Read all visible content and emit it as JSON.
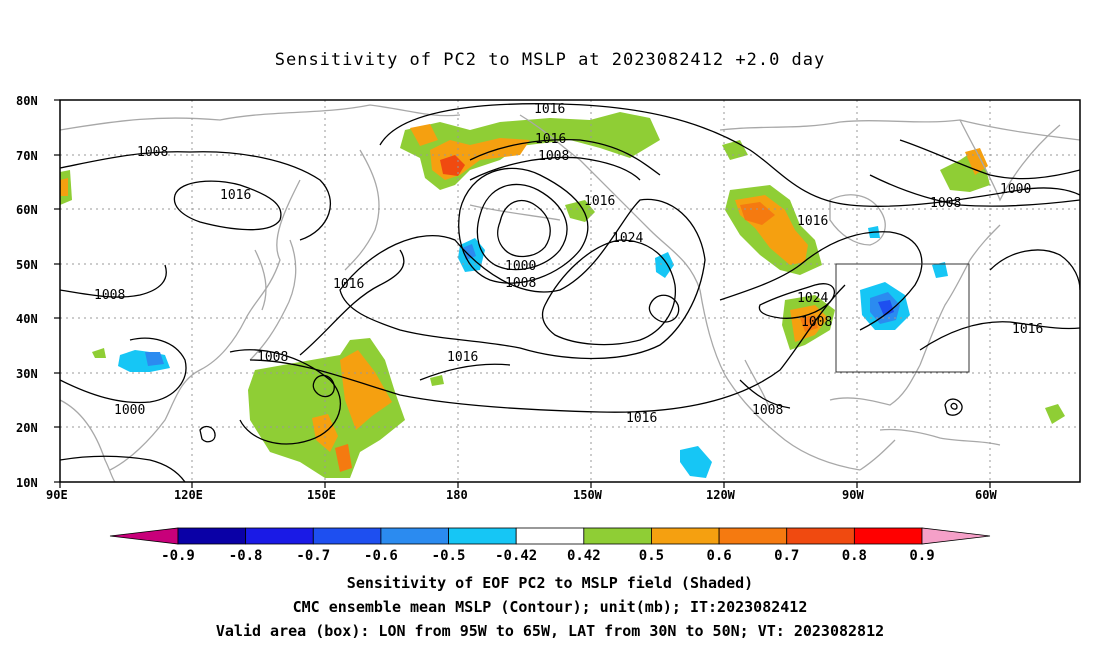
{
  "title": "Sensitivity of PC2 to MSLP at 2023082412 +2.0 day",
  "axes": {
    "lon_ticks": [
      "90E",
      "120E",
      "150E",
      "180",
      "150W",
      "120W",
      "90W",
      "60W"
    ],
    "lat_ticks": [
      "80N",
      "70N",
      "60N",
      "50N",
      "40N",
      "30N",
      "20N",
      "10N"
    ]
  },
  "colorbar": {
    "labels": [
      "-0.9",
      "-0.8",
      "-0.7",
      "-0.6",
      "-0.5",
      "-0.42",
      "0.42",
      "0.5",
      "0.6",
      "0.7",
      "0.8",
      "0.9"
    ],
    "colors": [
      "#c8007a",
      "#0a00a6",
      "#1a1ae6",
      "#1e4ff0",
      "#2b8bf0",
      "#16c6f5",
      "#ffffff",
      "#8fce35",
      "#f5a010",
      "#f57a10",
      "#f04a10",
      "#ff0000",
      "#f5a0c8"
    ]
  },
  "contour_labels": [
    "1016",
    "1016",
    "1008",
    "1008",
    "1016",
    "1016",
    "1024",
    "1000",
    "1008",
    "1016",
    "1016",
    "1008",
    "1008",
    "1000",
    "1008",
    "1016",
    "1024",
    "1016",
    "1000",
    "1008",
    "1016",
    "1008"
  ],
  "valid_box": {
    "lon_west": "95W",
    "lon_east": "65W",
    "lat_south": "30N",
    "lat_north": "50N"
  },
  "captions": [
    "Sensitivity of EOF PC2 to MSLP field (Shaded)",
    "CMC ensemble mean MSLP (Contour); unit(mb); IT:2023082412",
    "Valid area (box): LON from 95W to 65W, LAT from 30N to 50N; VT: 2023082812"
  ]
}
